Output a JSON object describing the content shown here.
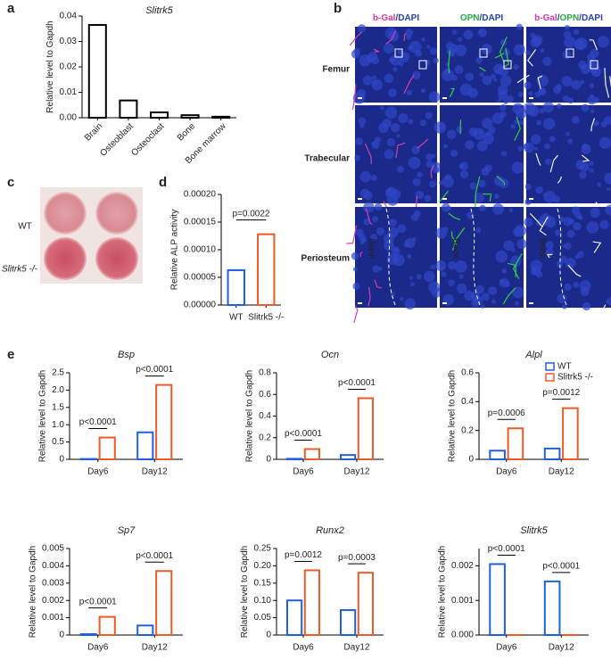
{
  "figure": {
    "panel_labels": [
      "a",
      "b",
      "c",
      "d",
      "e"
    ],
    "micrograph": {
      "columns": [
        [
          "b-Gal",
          "/DAPI"
        ],
        [
          "OPN",
          "/DAPI"
        ],
        [
          "b-Gal",
          "/",
          "OPN",
          "/DAPI"
        ]
      ],
      "rows": [
        "Femur",
        "Trabecular",
        "Periosteum"
      ],
      "region_label": "Bone"
    },
    "plate": {
      "rows": [
        "WT",
        "Slitrk5 -/-"
      ]
    }
  },
  "chart_data": [
    {
      "type": "bar",
      "title": "Slitrk5",
      "y_label": "Relative level to Gapdh",
      "categories": [
        "Brain",
        "Osteoblast",
        "Osteoclast",
        "Bone",
        "Bone marrow"
      ],
      "values": [
        0.0365,
        0.0068,
        0.0021,
        0.001,
        0.0004
      ],
      "colors": [
        "#000000",
        "#000000",
        "#000000",
        "#000000",
        "#000000"
      ],
      "fill": "#ffffff",
      "ylim": [
        0,
        0.04
      ],
      "yticks": [
        {
          "value": 0,
          "label": "0.00"
        },
        0.01,
        0.02,
        0.03,
        0.04
      ]
    },
    {
      "type": "bar",
      "y_label": "Relative ALP activity",
      "categories": [
        "WT",
        "Slitrk5 -/-"
      ],
      "values": [
        6.3e-05,
        0.000128
      ],
      "colors": [
        "#1f5fe0",
        "#f05a28"
      ],
      "fill": "#ffffff",
      "annotation": "p=0.0022",
      "ylim": [
        0,
        0.0002
      ],
      "yticks": [
        {
          "value": 0,
          "label": "0.00000"
        },
        {
          "value": 5e-05,
          "label": "0.00005"
        },
        {
          "value": 0.0001,
          "label": "0.00010"
        },
        {
          "value": 0.00015,
          "label": "0.00015"
        },
        {
          "value": 0.0002,
          "label": "0.00020"
        }
      ]
    },
    {
      "type": "bar",
      "title": "Bsp",
      "y_label": "Relative level to Gapdh",
      "categories": [
        "Day6",
        "Day12"
      ],
      "series": [
        {
          "name": "WT",
          "color": "#1f5fe0",
          "values": [
            0.01,
            0.78
          ]
        },
        {
          "name": "Slitrk5 -/-",
          "color": "#f05a28",
          "values": [
            0.63,
            2.15
          ]
        }
      ],
      "annotations": [
        "p<0.0001",
        "p<0.0001"
      ],
      "ylim": [
        0,
        2.5
      ],
      "yticks": [
        0,
        0.5,
        {
          "value": 1,
          "label": "1.0"
        },
        1.5,
        {
          "value": 2,
          "label": "2.0"
        },
        2.5
      ]
    },
    {
      "type": "bar",
      "title": "Ocn",
      "y_label": "Relative level to Gapdh",
      "categories": [
        "Day6",
        "Day12"
      ],
      "series": [
        {
          "name": "WT",
          "color": "#1f5fe0",
          "values": [
            0.005,
            0.04
          ]
        },
        {
          "name": "Slitrk5 -/-",
          "color": "#f05a28",
          "values": [
            0.095,
            0.565
          ]
        }
      ],
      "annotations": [
        "p<0.0001",
        "p<0.0001"
      ],
      "ylim": [
        0,
        0.8
      ],
      "yticks": [
        0,
        0.2,
        0.4,
        0.6,
        0.8
      ]
    },
    {
      "type": "bar",
      "title": "Alpl",
      "y_label": "Relative level to Gapdh",
      "categories": [
        "Day6",
        "Day12"
      ],
      "series": [
        {
          "name": "WT",
          "color": "#1f5fe0",
          "values": [
            0.06,
            0.075
          ]
        },
        {
          "name": "Slitrk5 -/-",
          "color": "#f05a28",
          "values": [
            0.215,
            0.355
          ]
        }
      ],
      "annotations": [
        "p=0.0006",
        "p=0.0012"
      ],
      "ylim": [
        0,
        0.6
      ],
      "yticks": [
        0,
        0.2,
        0.4,
        0.6
      ]
    },
    {
      "type": "bar",
      "title": "Sp7",
      "y_label": "Relative level to Gapdh",
      "categories": [
        "Day6",
        "Day12"
      ],
      "series": [
        {
          "name": "WT",
          "color": "#1f5fe0",
          "values": [
            5e-05,
            0.00055
          ]
        },
        {
          "name": "Slitrk5 -/-",
          "color": "#f05a28",
          "values": [
            0.00105,
            0.0037
          ]
        }
      ],
      "annotations": [
        "p<0.0001",
        "p<0.0001"
      ],
      "ylim": [
        0,
        0.005
      ],
      "yticks": [
        0,
        0.001,
        0.002,
        0.003,
        0.004,
        0.005
      ]
    },
    {
      "type": "bar",
      "title": "Runx2",
      "y_label": "Relative level to Gapdh",
      "categories": [
        "Day6",
        "Day12"
      ],
      "series": [
        {
          "name": "WT",
          "color": "#1f5fe0",
          "values": [
            0.1,
            0.072
          ]
        },
        {
          "name": "Slitrk5 -/-",
          "color": "#f05a28",
          "values": [
            0.187,
            0.18
          ]
        }
      ],
      "annotations": [
        "p=0.0012",
        "p=0.0003"
      ],
      "ylim": [
        0,
        0.25
      ],
      "yticks": [
        0,
        0.05,
        {
          "value": 0.1,
          "label": "0.10"
        },
        0.15,
        {
          "value": 0.2,
          "label": "0.20"
        },
        0.25
      ]
    },
    {
      "type": "bar",
      "title": "Slitrk5",
      "y_label": "Relative level to Gapdh",
      "categories": [
        "Day6",
        "Day12"
      ],
      "series": [
        {
          "name": "WT",
          "color": "#1f5fe0",
          "values": [
            0.00205,
            0.00155
          ]
        },
        {
          "name": "Slitrk5 -/-",
          "color": "#f05a28",
          "values": [
            0,
            0
          ]
        }
      ],
      "annotations": [
        "p<0.0001",
        "p<0.0001"
      ],
      "ylim": [
        0,
        0.0025
      ],
      "yticks": [
        {
          "value": 0,
          "label": "0.000"
        },
        0.001,
        0.002
      ]
    }
  ]
}
